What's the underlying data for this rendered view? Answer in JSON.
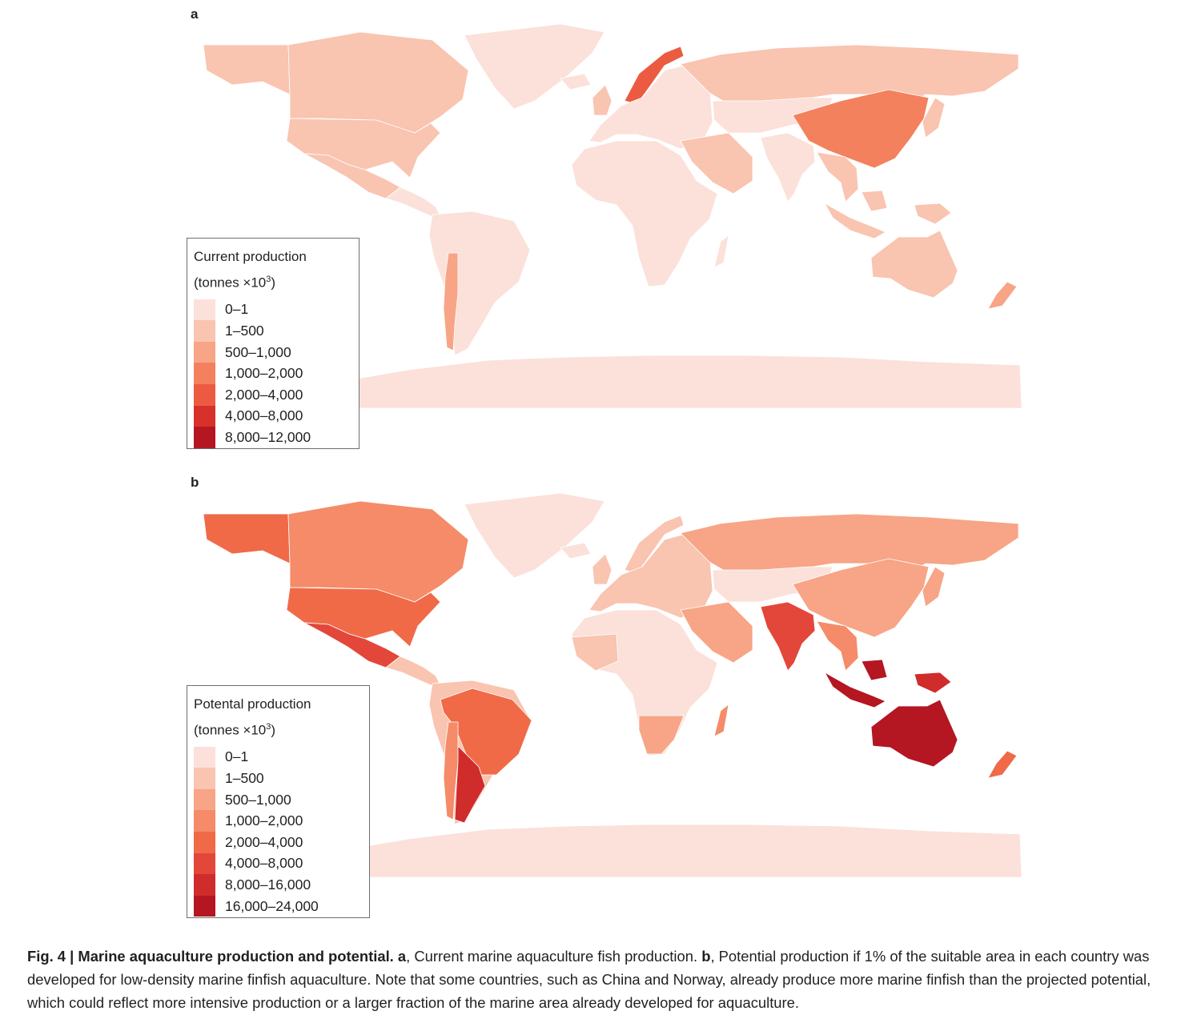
{
  "panel_a": {
    "label": "a",
    "legend_title": "Current production",
    "legend_unit_prefix": "(tonnes ×10",
    "legend_unit_exp": "3",
    "legend_unit_suffix": ")",
    "legend": [
      {
        "label": "0–1",
        "color": "#fbe1d9"
      },
      {
        "label": "1–500",
        "color": "#f9c4b0"
      },
      {
        "label": "500–1,000",
        "color": "#f7a586"
      },
      {
        "label": "1,000–2,000",
        "color": "#f4815d"
      },
      {
        "label": "2,000–4,000",
        "color": "#ec5b41"
      },
      {
        "label": "4,000–8,000",
        "color": "#d7312b"
      },
      {
        "label": "8,000–12,000",
        "color": "#b41622"
      }
    ]
  },
  "panel_b": {
    "label": "b",
    "legend_title": "Potental production",
    "legend_unit_prefix": "(tonnes ×10",
    "legend_unit_exp": "3",
    "legend_unit_suffix": ")",
    "legend": [
      {
        "label": "0–1",
        "color": "#fbe1d9"
      },
      {
        "label": "1–500",
        "color": "#f9c4b0"
      },
      {
        "label": "500–1,000",
        "color": "#f7a586"
      },
      {
        "label": "1,000–2,000",
        "color": "#f58b68"
      },
      {
        "label": "2,000–4,000",
        "color": "#f06a48"
      },
      {
        "label": "4,000–8,000",
        "color": "#e3473a"
      },
      {
        "label": "8,000–16,000",
        "color": "#d02c2c"
      },
      {
        "label": "16,000–24,000",
        "color": "#b41622"
      }
    ]
  },
  "regions": {
    "a": {
      "alaska": "#f9c4b0",
      "canada": "#f9c4b0",
      "greenland": "#fbe1d9",
      "usa": "#f9c4b0",
      "mexico": "#f9c4b0",
      "central_america": "#fbe1d9",
      "south_america": "#fbe1d9",
      "chile": "#f7a586",
      "iceland": "#fbe1d9",
      "uk": "#f9c4b0",
      "norway": "#ec5b41",
      "europe": "#fbe1d9",
      "russia": "#f9c4b0",
      "africa": "#fbe1d9",
      "madagascar": "#fbe1d9",
      "middle_east": "#f9c4b0",
      "india": "#fbe1d9",
      "china": "#f4815d",
      "central_asia": "#fbe1d9",
      "japan": "#f9c4b0",
      "southeast_asia": "#f9c4b0",
      "indonesia": "#f9c4b0",
      "new_guinea": "#f9c4b0",
      "australia": "#f9c4b0",
      "new_zealand": "#f7a586",
      "antarctica": "#fbe1d9"
    },
    "b": {
      "alaska": "#f06a48",
      "canada": "#f58b68",
      "greenland": "#fbe1d9",
      "usa": "#f06a48",
      "mexico": "#e3473a",
      "central_america": "#f9c4b0",
      "south_america": "#f9c4b0",
      "brazil": "#f06a48",
      "chile": "#f58b68",
      "argentina": "#d02c2c",
      "iceland": "#fbe1d9",
      "uk": "#f9c4b0",
      "norway": "#f9c4b0",
      "europe": "#f9c4b0",
      "russia": "#f7a586",
      "africa": "#fbe1d9",
      "west_africa": "#f9c4b0",
      "southern_africa": "#f7a586",
      "madagascar": "#f58b68",
      "middle_east": "#f7a586",
      "india": "#e3473a",
      "china": "#f7a586",
      "central_asia": "#fbe1d9",
      "japan": "#f7a586",
      "southeast_asia": "#f58b68",
      "indonesia": "#b41622",
      "new_guinea": "#d02c2c",
      "australia": "#b41622",
      "new_zealand": "#f06a48",
      "antarctica": "#fbe1d9"
    }
  },
  "caption": {
    "fig": "Fig. 4 | Marine aquaculture production and potential.",
    "a_label": "a",
    "a_text": ", Current marine aquaculture fish production.",
    "b_label": "b",
    "b_text": ", Potential production if 1% of the suitable area in each country was developed for low-density marine finfish aquaculture. Note that some countries, such as China and Norway, already produce more marine finfish than the projected potential, which could reflect more intensive production or a larger fraction of the marine area already developed for aquaculture."
  }
}
